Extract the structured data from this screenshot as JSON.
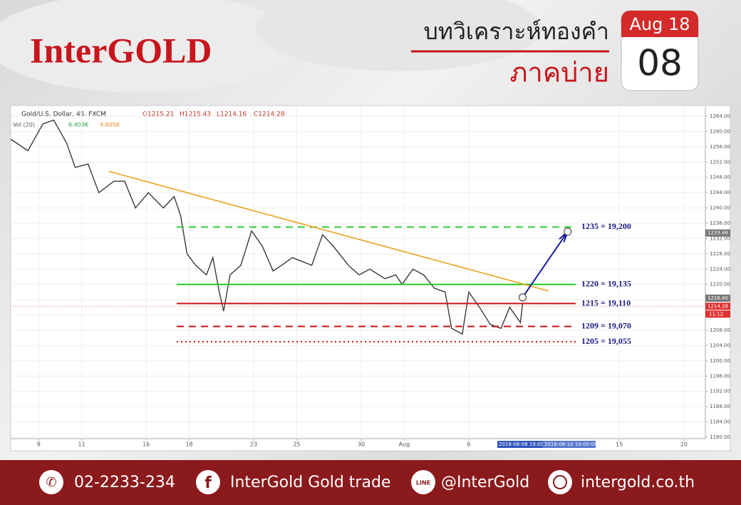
{
  "header": {
    "logo": "InterGOLD",
    "title": "บทวิเคราะห์ทองคำ",
    "subtitle": "ภาคบ่าย",
    "calendar": {
      "month": "Aug 18",
      "day": "08"
    }
  },
  "chart_data": {
    "type": "line",
    "symbol": "Gold/U.S. Dollar, 45, FXCM",
    "ohlc": [
      "O1215.21",
      "H1215.43",
      "L1214.16",
      "C1214.28"
    ],
    "volume_label": "Vol (20)",
    "volume_values": [
      "6.403K",
      "4.605K"
    ],
    "x": [
      -1.3,
      -0.5,
      0.2,
      0.7,
      1.3,
      1.7,
      2.3,
      2.8,
      3.5,
      4.0,
      4.5,
      5.1,
      5.8,
      6.3,
      6.6,
      6.9,
      7.3,
      7.8,
      8.1,
      8.4,
      8.6,
      8.9,
      9.4,
      9.9,
      10.4,
      10.9,
      11.3,
      11.8,
      12.7,
      13.2,
      13.7,
      14.4,
      14.9,
      15.4,
      16.1,
      16.6,
      16.9,
      17.4,
      17.9,
      18.4,
      18.9,
      19.2,
      19.7,
      20.0,
      20.5,
      21.0,
      21.5,
      21.9,
      22.4,
      22.5
    ],
    "values": [
      1258,
      1255,
      1262,
      1263,
      1257,
      1250.6,
      1251.5,
      1244,
      1247,
      1247,
      1240,
      1244,
      1240,
      1243,
      1238,
      1228,
      1225,
      1222.5,
      1227,
      1218,
      1213,
      1222.5,
      1225,
      1234,
      1230,
      1223.5,
      1225,
      1227,
      1225,
      1233,
      1230,
      1225,
      1222.5,
      1224,
      1221.5,
      1222.5,
      1220,
      1224,
      1222.5,
      1219,
      1218,
      1208.5,
      1207,
      1218,
      1214,
      1209.5,
      1208.5,
      1214,
      1210,
      1215
    ],
    "color": "#3a3a3a",
    "xlim": [
      -1.3,
      31
    ],
    "ylim": [
      1180,
      1264
    ],
    "xticks": [
      {
        "value": 0,
        "label": "9"
      },
      {
        "value": 2,
        "label": "11"
      },
      {
        "value": 5,
        "label": "16"
      },
      {
        "value": 7,
        "label": "18"
      },
      {
        "value": 10,
        "label": "23"
      },
      {
        "value": 12,
        "label": "25"
      },
      {
        "value": 15,
        "label": "30"
      },
      {
        "value": 17,
        "label": "Aug"
      },
      {
        "value": 20,
        "label": "6"
      },
      {
        "value": 27,
        "label": "15"
      },
      {
        "value": 30,
        "label": "20"
      }
    ],
    "yticks": [
      {
        "value": 1180,
        "label": "1180.00"
      },
      {
        "value": 1184,
        "label": "1184.00"
      },
      {
        "value": 1188,
        "label": "1188.00"
      },
      {
        "value": 1192,
        "label": "1192.00"
      },
      {
        "value": 1196,
        "label": "1196.00"
      },
      {
        "value": 1200,
        "label": "1200.00"
      },
      {
        "value": 1204,
        "label": "1204.00"
      },
      {
        "value": 1208,
        "label": "1208.00"
      },
      {
        "value": 1212,
        "label": "1212.00"
      },
      {
        "value": 1216,
        "label": "1216.00"
      },
      {
        "value": 1220,
        "label": "1220.00"
      },
      {
        "value": 1224,
        "label": "1224.00"
      },
      {
        "value": 1228,
        "label": "1228.00"
      },
      {
        "value": 1232,
        "label": "1232.00"
      },
      {
        "value": 1236,
        "label": "1236.00"
      },
      {
        "value": 1240,
        "label": "1240.00"
      },
      {
        "value": 1244,
        "label": "1244.00"
      },
      {
        "value": 1248,
        "label": "1248.00"
      },
      {
        "value": 1252,
        "label": "1252.00"
      },
      {
        "value": 1256,
        "label": "1256.00"
      },
      {
        "value": 1260,
        "label": "1260.00"
      },
      {
        "value": 1264,
        "label": "1264.00"
      }
    ],
    "grid": true,
    "levels": [
      {
        "value": 1235,
        "label": "1235 = 19,200",
        "color": "#33cc33",
        "style": "dashed"
      },
      {
        "value": 1220,
        "label": "1220 = 19,135",
        "color": "#22cc22",
        "style": "solid"
      },
      {
        "value": 1215,
        "label": "1215 = 19,110",
        "color": "#cc1111",
        "style": "solid"
      },
      {
        "value": 1209,
        "label": "1209 = 19,070",
        "color": "#cc1111",
        "style": "dashed"
      },
      {
        "value": 1205,
        "label": "1205 = 19,055",
        "color": "#cc1111",
        "style": "dotted"
      }
    ],
    "trendline": {
      "x": [
        3.25,
        23.7
      ],
      "values": [
        1249.6,
        1218.3
      ],
      "color": "#e8a320"
    },
    "projection": {
      "x": [
        22.5,
        24.6
      ],
      "values": [
        1216.6,
        1233.8
      ],
      "color": "#1a1a99"
    },
    "price_tags": [
      {
        "value": 1233.46,
        "label": "1233.46",
        "color": "#777777"
      },
      {
        "value": 1216.4,
        "label": "1216.40",
        "color": "#777777"
      },
      {
        "value": 1214.28,
        "label": "1214.28",
        "color": "#e03030"
      }
    ],
    "countdown": "11:12",
    "date_tags": [
      "2018-08-08 19:00",
      "2018-08-10 19:00:00"
    ]
  },
  "footer": {
    "phone": "02-2233-234",
    "facebook": "InterGold Gold trade",
    "line": "@InterGold",
    "website": "intergold.co.th"
  }
}
